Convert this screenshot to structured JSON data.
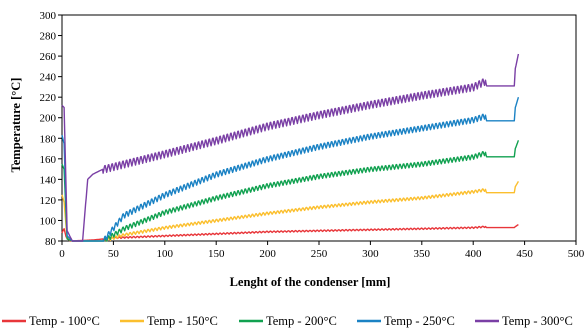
{
  "chart_data": {
    "type": "line",
    "xlabel": "Lenght of the condenser [mm]",
    "ylabel": "Temperature [°C]",
    "xlim": [
      0,
      500
    ],
    "ylim": [
      80,
      300
    ],
    "xticks": [
      0,
      50,
      100,
      150,
      200,
      250,
      300,
      350,
      400,
      450,
      500
    ],
    "yticks": [
      80,
      100,
      120,
      140,
      160,
      180,
      200,
      220,
      240,
      260,
      280,
      300
    ],
    "grid": false,
    "legend_position": "bottom",
    "series": [
      {
        "name": "Temp - 100°C",
        "color": "#e8363a",
        "x": [
          0,
          2,
          4,
          8,
          30,
          50,
          100,
          150,
          200,
          250,
          300,
          350,
          400,
          412,
          413,
          440,
          441,
          444
        ],
        "y": [
          88,
          92,
          84,
          80,
          81,
          83,
          85,
          87,
          89,
          90,
          91,
          92,
          93,
          94,
          93,
          93,
          94,
          96
        ],
        "oscillation": 1.5
      },
      {
        "name": "Temp - 150°C",
        "color": "#fbbf2e",
        "x": [
          0,
          2,
          5,
          10,
          25,
          40,
          60,
          100,
          150,
          200,
          250,
          300,
          350,
          400,
          412,
          413,
          440,
          441,
          444
        ],
        "y": [
          125,
          118,
          82,
          80,
          80,
          80,
          86,
          93,
          100,
          107,
          113,
          118,
          122,
          128,
          130,
          127,
          127,
          133,
          138
        ],
        "oscillation": 3
      },
      {
        "name": "Temp - 200°C",
        "color": "#11a150",
        "x": [
          0,
          2,
          5,
          10,
          25,
          40,
          60,
          100,
          150,
          200,
          250,
          300,
          350,
          400,
          412,
          413,
          440,
          441,
          444
        ],
        "y": [
          155,
          150,
          82,
          80,
          80,
          80,
          92,
          108,
          122,
          134,
          143,
          150,
          155,
          162,
          166,
          162,
          162,
          170,
          178
        ],
        "oscillation": 5
      },
      {
        "name": "Temp - 250°C",
        "color": "#1b82c4",
        "x": [
          0,
          2,
          5,
          10,
          25,
          40,
          60,
          100,
          150,
          200,
          250,
          300,
          350,
          400,
          412,
          413,
          440,
          441,
          444
        ],
        "y": [
          183,
          175,
          85,
          80,
          80,
          80,
          105,
          125,
          145,
          160,
          172,
          182,
          190,
          198,
          202,
          197,
          197,
          210,
          220
        ],
        "oscillation": 6
      },
      {
        "name": "Temp - 300°C",
        "color": "#7a3fa5",
        "x": [
          0,
          2,
          5,
          10,
          20,
          25,
          30,
          40,
          60,
          100,
          150,
          200,
          250,
          300,
          350,
          400,
          412,
          413,
          440,
          441,
          444
        ],
        "y": [
          212,
          210,
          90,
          80,
          80,
          140,
          145,
          150,
          155,
          165,
          178,
          192,
          203,
          213,
          222,
          230,
          236,
          231,
          231,
          248,
          262
        ],
        "oscillation": 8
      }
    ]
  }
}
